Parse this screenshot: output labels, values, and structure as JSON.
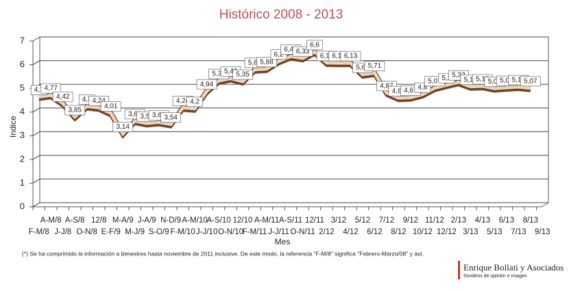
{
  "chart_data": {
    "type": "line",
    "title": "Histórico 2008 - 2013",
    "y_label": "Indice",
    "x_label": "Mes",
    "categories": [
      "F-M/8",
      "A-M/8",
      "J-J/8",
      "A-S/8",
      "O-N/8",
      "12/8",
      "E-F/9",
      "M-A/9",
      "M-J/9",
      "J-A/9",
      "S-O/9",
      "N-D/9",
      "F-M/10",
      "A-M/10",
      "J-J/10",
      "A-S/10",
      "O-N/10",
      "12/10",
      "F-M/11",
      "A-M/11",
      "J-J/11",
      "A-S/11",
      "O-N/11",
      "12/11",
      "2/12",
      "3/12",
      "4/12",
      "5/12",
      "6/12",
      "7/12",
      "8/12",
      "9/12",
      "10/12",
      "11/12",
      "12/12",
      "2/13",
      "3/13",
      "4/13",
      "5/13",
      "6/13",
      "7/13",
      "8/13",
      "9/13"
    ],
    "values": [
      4.7,
      4.77,
      4.42,
      3.85,
      4.3,
      4.24,
      4.01,
      3.14,
      3.68,
      3.58,
      3.63,
      3.54,
      4.24,
      4.2,
      4.94,
      5.38,
      5.48,
      5.35,
      5.85,
      5.88,
      6.2,
      6.41,
      6.33,
      6.6,
      6.14,
      6.13,
      6.13,
      5.64,
      5.71,
      4.87,
      4.65,
      4.67,
      4.8,
      5.07,
      5.2,
      5.32,
      5.13,
      5.15,
      5.05,
      5.09,
      5.12,
      5.07,
      null
    ],
    "value_labels": [
      "4,7",
      "4,77",
      "4,42",
      "3,85",
      "4,3",
      "4,24",
      "4,01",
      "3,14",
      "3,68",
      "3,58",
      "3,63",
      "3,54",
      "4,24",
      "4,2",
      "4,94",
      "5,38",
      "5,48",
      "5,35",
      "5,85",
      "5,88",
      "6,2",
      "6,41",
      "6,33",
      "6,6",
      "6,14",
      "6,13",
      "6,13",
      "5,64",
      "5,71",
      "4,87",
      "4,65",
      "4,67",
      "4,8",
      "5,07",
      "5,2",
      "5,32",
      "5,13",
      "5,15",
      "5,05",
      "5,09",
      "5,12",
      "5,07",
      null
    ],
    "color": "#f5d2b0",
    "ylim": [
      0,
      7
    ],
    "yticks": [
      0,
      1,
      2,
      3,
      4,
      5,
      6,
      7
    ],
    "grid": true
  },
  "footnote": "(*) Se ha comprimido la información a bimestres hasta noviembre de 2011 inclusive.  De este modo, la referencia \"F-M/8\" significa  \"Febrero-Marzo/08\" y así.",
  "logo": {
    "name": "Enrique Bollati y Asociados",
    "tagline": "Sondeos de opinión e imagen"
  }
}
